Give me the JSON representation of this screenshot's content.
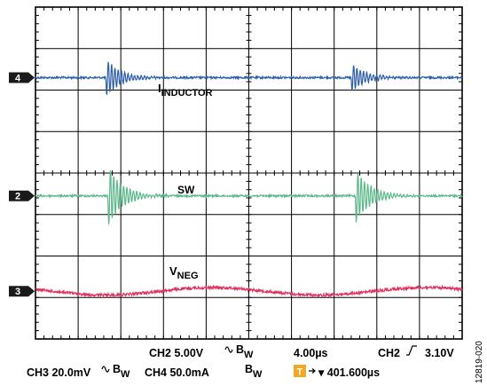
{
  "chart_data": {
    "type": "line",
    "divisions": {
      "x": 10,
      "y": 8
    },
    "traces": [
      {
        "channel": "4",
        "label": "I",
        "label_sub": "INDUCTOR",
        "color": "#2e5ea8",
        "ringing_x_div": [
          1.65,
          7.4
        ],
        "ringing_amp_div": [
          0.95,
          0.7
        ],
        "ringing_side": "both"
      },
      {
        "channel": "2",
        "label": "SW",
        "label_sub": "",
        "color": "#5cb88a",
        "ringing_x_div": [
          1.7,
          7.5
        ],
        "ringing_amp_div": [
          1.5,
          1.35
        ],
        "ringing_side": "both"
      },
      {
        "channel": "3",
        "label": "V",
        "label_sub": "NEG",
        "color": "#e0335f",
        "ripple_amp_div": 0.09,
        "ripple_period_div": 5.0
      }
    ],
    "readout": {
      "ch2_scale": "CH2 5.00V",
      "bw_mark": "B",
      "bw_sub": "W",
      "ch3_scale": "CH3 20.0mV",
      "ch4_scale": "CH4 50.0mA",
      "timebase": "4.00µs",
      "trigger_source": "CH2",
      "trigger_level": "3.10V",
      "trigger_badge": "T",
      "trigger_position": "▾ 401.600µs"
    },
    "figure_id": "12819-020"
  },
  "colors": {
    "grid": "#000000",
    "background": "#ffffff",
    "marker": "#1a1a1a",
    "trigger_badge": "#f5a623"
  }
}
